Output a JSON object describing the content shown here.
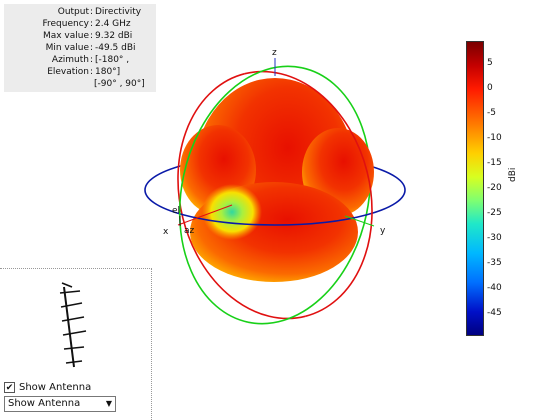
{
  "info": {
    "rows": [
      {
        "key": "Output",
        "value": "Directivity"
      },
      {
        "key": "Frequency",
        "value": "2.4 GHz"
      },
      {
        "key": "Max value",
        "value": "9.32 dBi"
      },
      {
        "key": "Min value",
        "value": "-49.5 dBi"
      },
      {
        "key": "Azimuth",
        "value": "[-180° ,"
      },
      {
        "key": "Elevation",
        "value": "180°]"
      }
    ],
    "continuation": "[-90° , 90°]"
  },
  "axes": {
    "x": "x",
    "y": "y",
    "z": "z",
    "el": "el",
    "az": "az"
  },
  "colorbar": {
    "ticks": [
      "5",
      "0",
      "-5",
      "-10",
      "-15",
      "-20",
      "-25",
      "-30",
      "-35",
      "-40",
      "-45"
    ],
    "unit": "dBi"
  },
  "controls": {
    "show_antenna_checkbox_label": "Show Antenna",
    "show_antenna_checked": true,
    "check_mark": "✔",
    "dropdown_value": "Show Antenna",
    "dropdown_arrow": "▼"
  },
  "colors": {
    "blue_circle": "#0a1aa8",
    "red_circle": "#e01010",
    "green_circle": "#18d018",
    "pattern_red": "#f02800"
  }
}
